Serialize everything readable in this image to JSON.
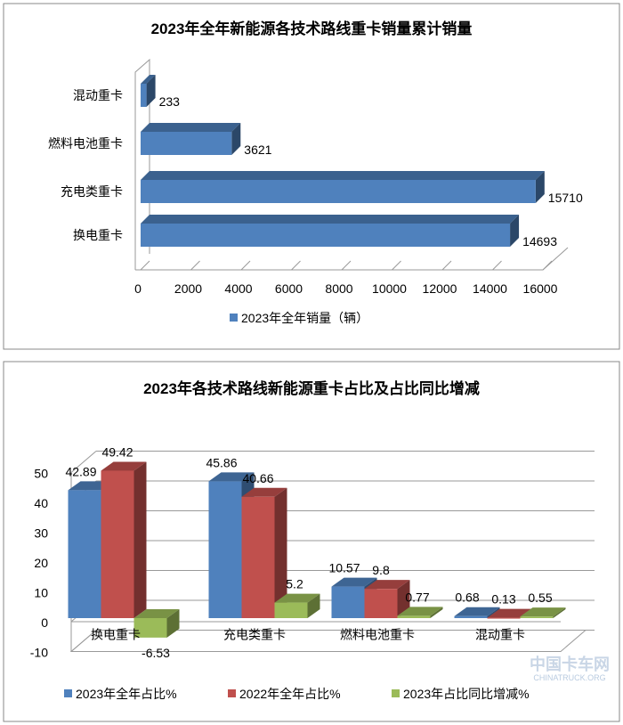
{
  "chart_data": [
    {
      "type": "bar",
      "orientation": "horizontal",
      "title": "2023年全年新能源各技术路线重卡销量累计销量",
      "categories": [
        "混动重卡",
        "燃料电池重卡",
        "充电类重卡",
        "换电重卡"
      ],
      "series": [
        {
          "name": "2023年全年销量（辆）",
          "values": [
            233,
            3621,
            15710,
            14693
          ],
          "color": "#4F81BD"
        }
      ],
      "data_labels": [
        "233",
        "3621",
        "15710",
        "14693"
      ],
      "xlim": [
        0,
        16000
      ],
      "xticks": [
        "0",
        "2000",
        "4000",
        "6000",
        "8000",
        "10000",
        "12000",
        "14000",
        "16000"
      ],
      "legend": "bottom",
      "grid": false
    },
    {
      "type": "bar",
      "title": "2023年各技术路线新能源重卡占比及占比同比增减",
      "categories": [
        "换电重卡",
        "充电类重卡",
        "燃料电池重卡",
        "混动重卡"
      ],
      "series": [
        {
          "name": "2023年全年占比%",
          "values": [
            42.89,
            45.86,
            10.57,
            0.68
          ],
          "labels": [
            "42.89",
            "45.86",
            "10.57",
            "0.68"
          ],
          "color": "#4F81BD"
        },
        {
          "name": "2022年全年占比%",
          "values": [
            49.42,
            40.66,
            9.8,
            0.13
          ],
          "labels": [
            "49.42",
            "40.66",
            "9.8",
            "0.13"
          ],
          "color": "#C0504D"
        },
        {
          "name": "2023年占比同比增减%",
          "values": [
            -6.53,
            5.2,
            0.77,
            0.55
          ],
          "labels": [
            "-6.53",
            "5.2",
            "0.77",
            "0.55"
          ],
          "color": "#9BBB59"
        }
      ],
      "ylim": [
        -10,
        50
      ],
      "yticks": [
        "-10",
        "0",
        "10",
        "20",
        "30",
        "40",
        "50"
      ],
      "legend": "bottom",
      "grid": true
    }
  ],
  "watermark": "中国卡车网 CHINATRUCK.ORG"
}
